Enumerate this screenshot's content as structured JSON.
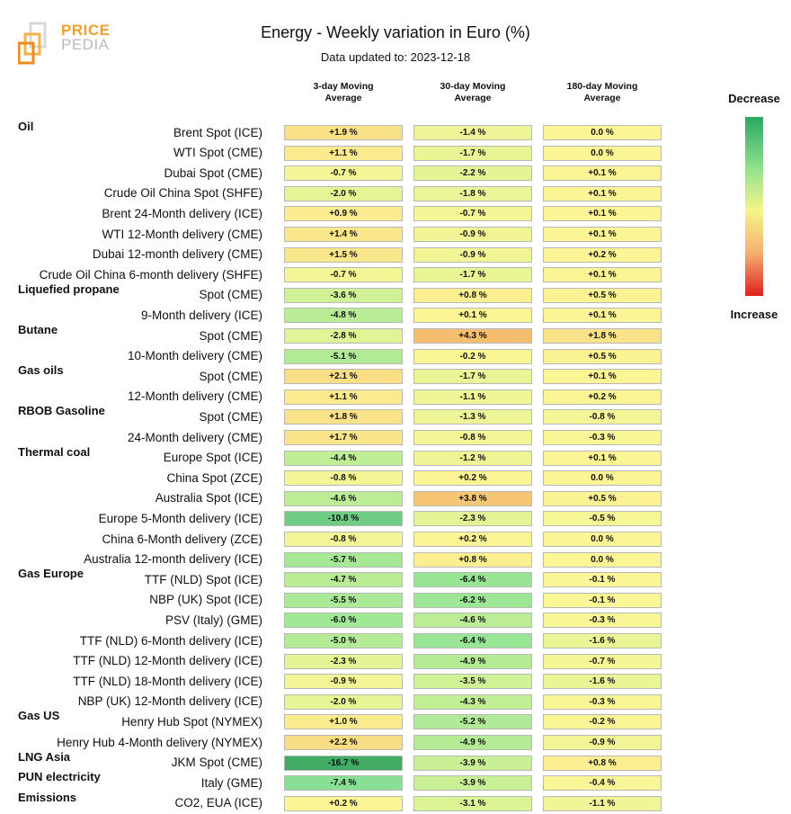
{
  "logo": {
    "line1": "PRICE",
    "line2": "PEDIA"
  },
  "title": "Energy - Weekly variation in Euro (%)",
  "subtitle": "Data updated to: 2023-12-18",
  "legend": {
    "top": "Decrease",
    "bottom": "Increase"
  },
  "chart_data": {
    "type": "table",
    "columns": [
      {
        "line1": "3-day Moving",
        "line2": "Average"
      },
      {
        "line1": "30-day Moving",
        "line2": "Average"
      },
      {
        "line1": "180-day Moving",
        "line2": "Average"
      }
    ],
    "groups": [
      {
        "name": "Oil",
        "rows": [
          {
            "label": "Brent Spot (ICE)",
            "values": [
              "+1.9 %",
              "-1.4 %",
              "0.0 %"
            ]
          },
          {
            "label": "WTI Spot (CME)",
            "values": [
              "+1.1 %",
              "-1.7 %",
              "0.0 %"
            ]
          },
          {
            "label": "Dubai Spot (CME)",
            "values": [
              "-0.7 %",
              "-2.2 %",
              "+0.1 %"
            ]
          },
          {
            "label": "Crude Oil China Spot (SHFE)",
            "values": [
              "-2.0 %",
              "-1.8 %",
              "+0.1 %"
            ]
          },
          {
            "label": "Brent 24-Month delivery (ICE)",
            "values": [
              "+0.9 %",
              "-0.7 %",
              "+0.1 %"
            ]
          },
          {
            "label": "WTI 12-Month delivery (CME)",
            "values": [
              "+1.4 %",
              "-0.9 %",
              "+0.1 %"
            ]
          },
          {
            "label": "Dubai 12-month delivery (CME)",
            "values": [
              "+1.5 %",
              "-0.9 %",
              "+0.2 %"
            ]
          },
          {
            "label": "Crude Oil China 6-month delivery (SHFE)",
            "values": [
              "-0.7 %",
              "-1.7 %",
              "+0.1 %"
            ]
          }
        ]
      },
      {
        "name": "Liquefied propane",
        "rows": [
          {
            "label": "Spot (CME)",
            "values": [
              "-3.6 %",
              "+0.8 %",
              "+0.5 %"
            ]
          },
          {
            "label": "9-Month delivery (ICE)",
            "values": [
              "-4.8 %",
              "+0.1 %",
              "+0.1 %"
            ]
          }
        ]
      },
      {
        "name": "Butane",
        "rows": [
          {
            "label": "Spot (CME)",
            "values": [
              "-2.8 %",
              "+4.3 %",
              "+1.8 %"
            ]
          },
          {
            "label": "10-Month delivery (CME)",
            "values": [
              "-5.1 %",
              "-0.2 %",
              "+0.5 %"
            ]
          }
        ]
      },
      {
        "name": "Gas oils",
        "rows": [
          {
            "label": "Spot (CME)",
            "values": [
              "+2.1 %",
              "-1.7 %",
              "+0.1 %"
            ]
          },
          {
            "label": "12-Month delivery (CME)",
            "values": [
              "+1.1 %",
              "-1.1 %",
              "+0.2 %"
            ]
          }
        ]
      },
      {
        "name": "RBOB Gasoline",
        "rows": [
          {
            "label": "Spot (CME)",
            "values": [
              "+1.8 %",
              "-1.3 %",
              "-0.8 %"
            ]
          },
          {
            "label": "24-Month delivery (CME)",
            "values": [
              "+1.7 %",
              "-0.8 %",
              "-0.3 %"
            ]
          }
        ]
      },
      {
        "name": "Thermal coal",
        "rows": [
          {
            "label": "Europe Spot (ICE)",
            "values": [
              "-4.4 %",
              "-1.2 %",
              "+0.1 %"
            ]
          },
          {
            "label": "China Spot (ZCE)",
            "values": [
              "-0.8 %",
              "+0.2 %",
              "0.0 %"
            ]
          },
          {
            "label": "Australia Spot (ICE)",
            "values": [
              "-4.6 %",
              "+3.8 %",
              "+0.5 %"
            ]
          },
          {
            "label": "Europe 5-Month delivery (ICE)",
            "values": [
              "-10.8 %",
              "-2.3 %",
              "-0.5 %"
            ]
          },
          {
            "label": "China 6-Month delivery (ZCE)",
            "values": [
              "-0.8 %",
              "+0.2 %",
              "0.0 %"
            ]
          },
          {
            "label": "Australia 12-month delivery (ICE)",
            "values": [
              "-5.7 %",
              "+0.8 %",
              "0.0 %"
            ]
          }
        ]
      },
      {
        "name": "Gas Europe",
        "rows": [
          {
            "label": "TTF (NLD) Spot (ICE)",
            "values": [
              "-4.7 %",
              "-6.4 %",
              "-0.1 %"
            ]
          },
          {
            "label": "NBP (UK) Spot (ICE)",
            "values": [
              "-5.5 %",
              "-6.2 %",
              "-0.1 %"
            ]
          },
          {
            "label": "PSV (Italy) (GME)",
            "values": [
              "-6.0 %",
              "-4.6 %",
              "-0.3 %"
            ]
          },
          {
            "label": "TTF (NLD) 6-Month delivery (ICE)",
            "values": [
              "-5.0 %",
              "-6.4 %",
              "-1.6 %"
            ]
          },
          {
            "label": "TTF (NLD) 12-Month delivery (ICE)",
            "values": [
              "-2.3 %",
              "-4.9 %",
              "-0.7 %"
            ]
          },
          {
            "label": "TTF (NLD) 18-Month delivery (ICE)",
            "values": [
              "-0.9 %",
              "-3.5 %",
              "-1.6 %"
            ]
          },
          {
            "label": "NBP (UK) 12-Month delivery (ICE)",
            "values": [
              "-2.0 %",
              "-4.3 %",
              "-0.3 %"
            ]
          }
        ]
      },
      {
        "name": "Gas US",
        "rows": [
          {
            "label": "Henry Hub Spot (NYMEX)",
            "values": [
              "+1.0 %",
              "-5.2 %",
              "-0.2 %"
            ]
          },
          {
            "label": "Henry Hub 4-Month delivery (NYMEX)",
            "values": [
              "+2.2 %",
              "-4.9 %",
              "-0.9 %"
            ]
          }
        ]
      },
      {
        "name": "LNG Asia",
        "rows": [
          {
            "label": "JKM Spot (CME)",
            "values": [
              "-16.7 %",
              "-3.9 %",
              "+0.8 %"
            ]
          }
        ]
      },
      {
        "name": "PUN electricity",
        "rows": [
          {
            "label": "Italy (GME)",
            "values": [
              "-7.4 %",
              "-3.9 %",
              "-0.4 %"
            ]
          }
        ]
      },
      {
        "name": "Emissions",
        "rows": [
          {
            "label": "CO2, EUA (ICE)",
            "values": [
              "+0.2 %",
              "-3.1 %",
              "-1.1 %"
            ]
          }
        ]
      }
    ]
  }
}
